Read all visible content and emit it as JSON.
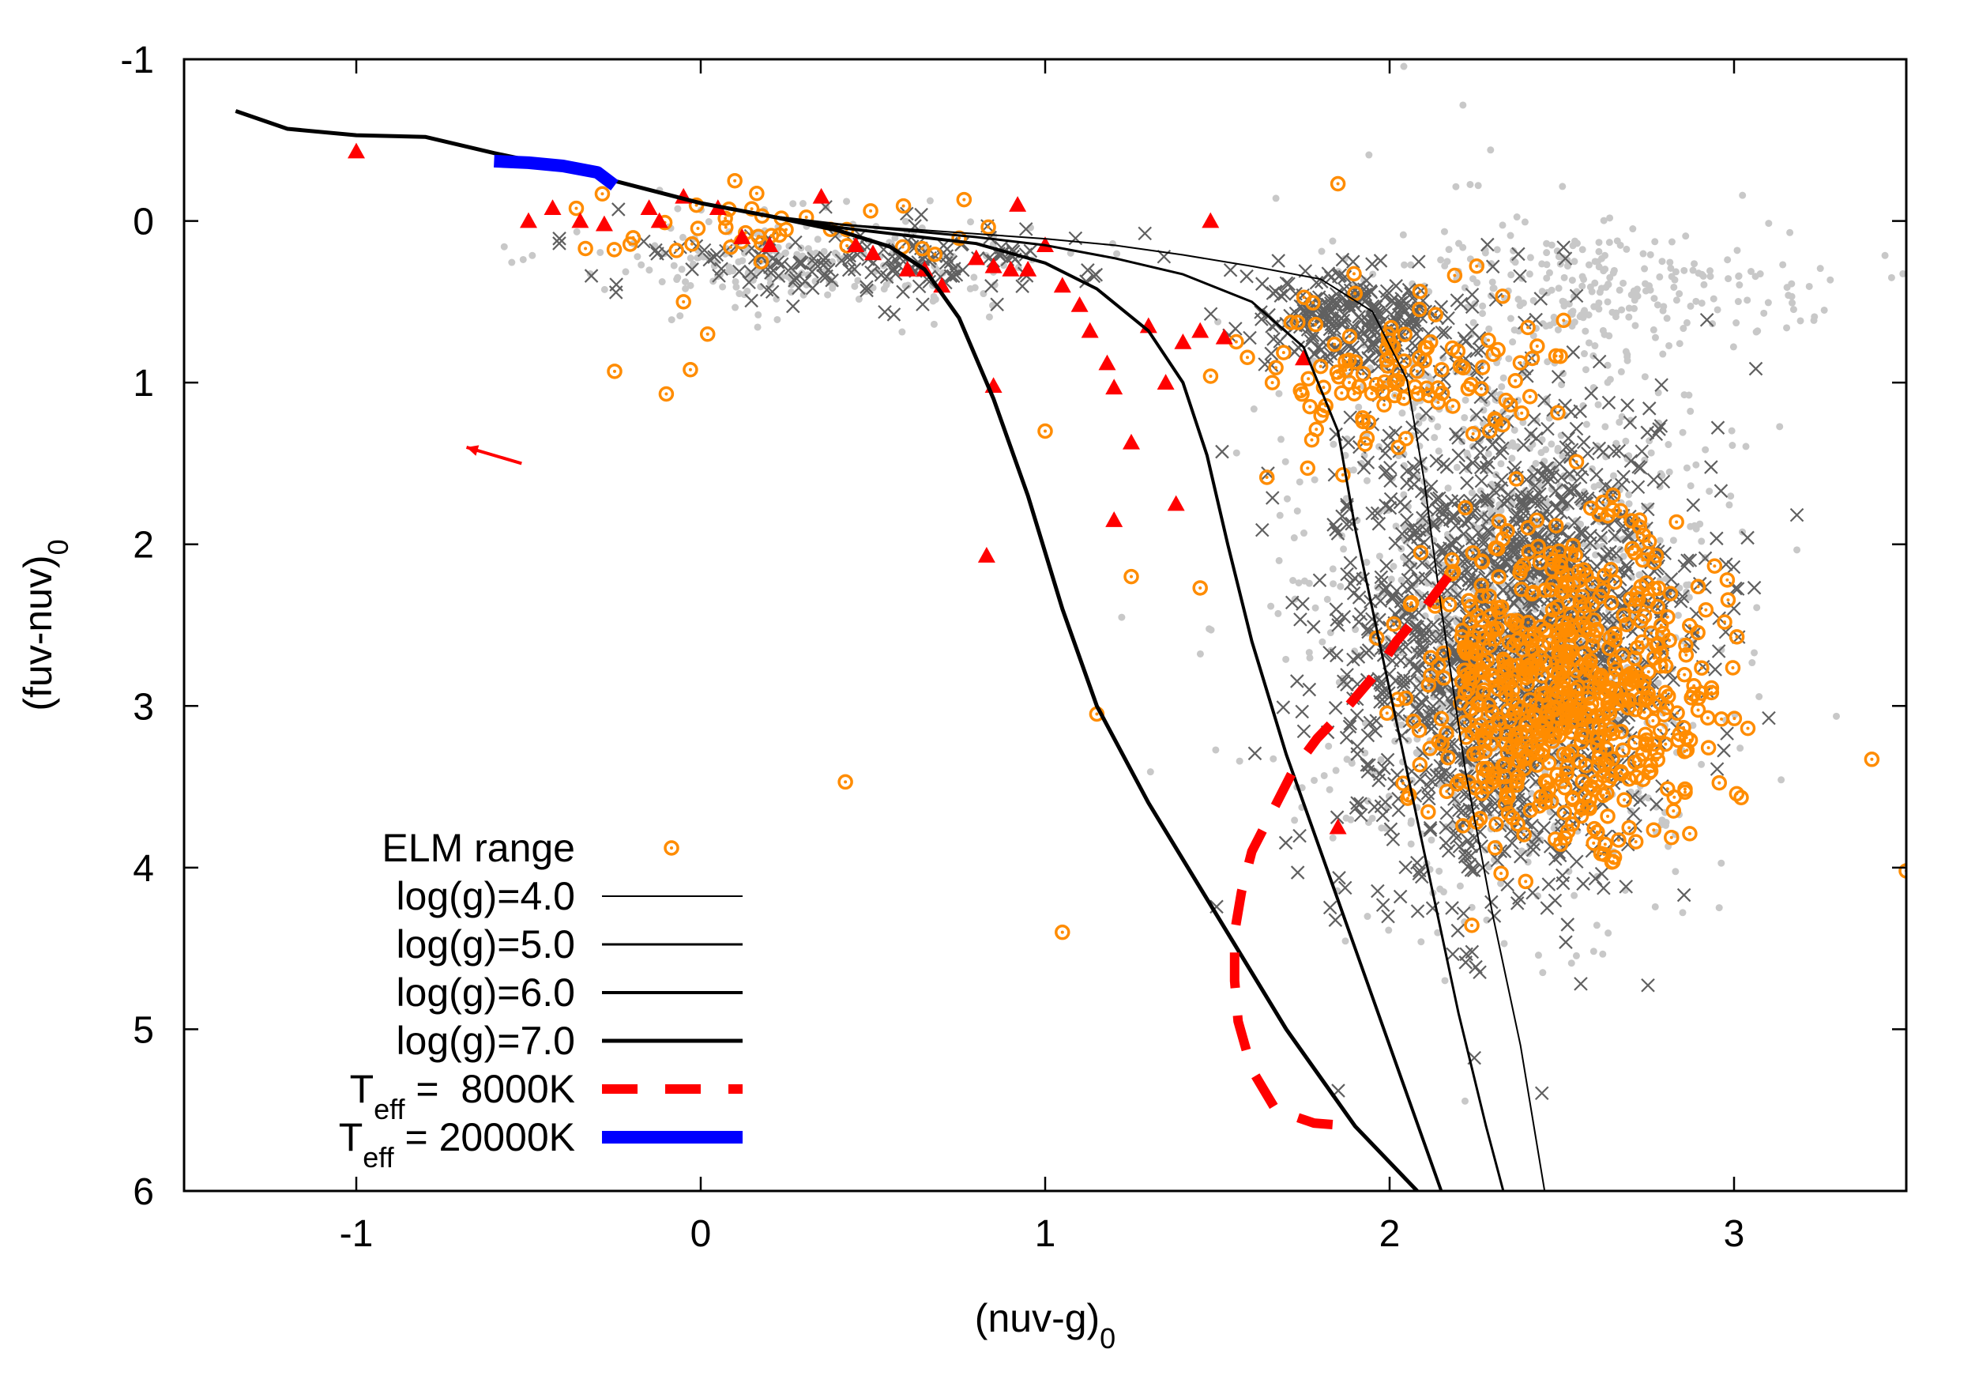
{
  "chart_data": {
    "type": "scatter",
    "xlabel": "(nuv-g)",
    "xlabel_sub": "0",
    "ylabel": "(fuv-nuv)",
    "ylabel_sub": "0",
    "xlim": [
      -1.5,
      3.5
    ],
    "ylim": [
      6,
      -1
    ],
    "y_inverted": true,
    "xticks": [
      -1,
      0,
      1,
      2,
      3
    ],
    "yticks": [
      -1,
      0,
      1,
      2,
      3,
      4,
      5,
      6
    ],
    "grid": false,
    "legend_position": "bottom-left",
    "series": [
      {
        "name": "log(g)=4.0",
        "kind": "line",
        "color": "#000000",
        "width": 2,
        "legend": "log(g)=4.0",
        "points": [
          [
            -1.35,
            -0.68
          ],
          [
            -1.2,
            -0.57
          ],
          [
            -1.0,
            -0.53
          ],
          [
            -0.8,
            -0.52
          ],
          [
            -0.6,
            -0.42
          ],
          [
            -0.4,
            -0.33
          ],
          [
            -0.2,
            -0.22
          ],
          [
            0.0,
            -0.11
          ],
          [
            0.2,
            -0.03
          ],
          [
            0.4,
            0.02
          ],
          [
            0.6,
            0.05
          ],
          [
            0.8,
            0.08
          ],
          [
            1.0,
            0.11
          ],
          [
            1.2,
            0.15
          ],
          [
            1.4,
            0.21
          ],
          [
            1.6,
            0.28
          ],
          [
            1.8,
            0.36
          ],
          [
            1.95,
            0.56
          ],
          [
            2.05,
            0.98
          ],
          [
            2.1,
            1.6
          ],
          [
            2.15,
            2.4
          ],
          [
            2.22,
            3.4
          ],
          [
            2.3,
            4.3
          ],
          [
            2.38,
            5.1
          ],
          [
            2.45,
            6.0
          ]
        ]
      },
      {
        "name": "log(g)=5.0",
        "kind": "line",
        "color": "#000000",
        "width": 3,
        "legend": "log(g)=5.0",
        "points": [
          [
            -1.35,
            -0.68
          ],
          [
            -1.2,
            -0.57
          ],
          [
            -1.0,
            -0.53
          ],
          [
            -0.8,
            -0.52
          ],
          [
            -0.6,
            -0.42
          ],
          [
            -0.4,
            -0.33
          ],
          [
            -0.2,
            -0.22
          ],
          [
            0.0,
            -0.11
          ],
          [
            0.2,
            -0.03
          ],
          [
            0.4,
            0.02
          ],
          [
            0.6,
            0.06
          ],
          [
            0.8,
            0.1
          ],
          [
            1.0,
            0.15
          ],
          [
            1.2,
            0.23
          ],
          [
            1.4,
            0.33
          ],
          [
            1.6,
            0.5
          ],
          [
            1.75,
            0.78
          ],
          [
            1.85,
            1.3
          ],
          [
            1.9,
            1.9
          ],
          [
            1.97,
            2.6
          ],
          [
            2.05,
            3.4
          ],
          [
            2.12,
            4.1
          ],
          [
            2.2,
            4.9
          ],
          [
            2.28,
            5.6
          ],
          [
            2.33,
            6.0
          ]
        ]
      },
      {
        "name": "log(g)=6.0",
        "kind": "line",
        "color": "#000000",
        "width": 4,
        "legend": "log(g)=6.0",
        "points": [
          [
            -1.35,
            -0.68
          ],
          [
            -1.2,
            -0.57
          ],
          [
            -1.0,
            -0.53
          ],
          [
            -0.8,
            -0.52
          ],
          [
            -0.6,
            -0.42
          ],
          [
            -0.4,
            -0.33
          ],
          [
            -0.2,
            -0.22
          ],
          [
            0.0,
            -0.11
          ],
          [
            0.2,
            -0.03
          ],
          [
            0.4,
            0.04
          ],
          [
            0.6,
            0.09
          ],
          [
            0.8,
            0.14
          ],
          [
            1.0,
            0.26
          ],
          [
            1.15,
            0.42
          ],
          [
            1.3,
            0.68
          ],
          [
            1.4,
            1.0
          ],
          [
            1.47,
            1.45
          ],
          [
            1.53,
            2.0
          ],
          [
            1.6,
            2.6
          ],
          [
            1.7,
            3.3
          ],
          [
            1.85,
            4.2
          ],
          [
            1.95,
            4.8
          ],
          [
            2.05,
            5.4
          ],
          [
            2.15,
            6.0
          ]
        ]
      },
      {
        "name": "log(g)=7.0",
        "kind": "line",
        "color": "#000000",
        "width": 5,
        "legend": "log(g)=7.0",
        "points": [
          [
            -1.35,
            -0.68
          ],
          [
            -1.2,
            -0.57
          ],
          [
            -1.0,
            -0.53
          ],
          [
            -0.8,
            -0.52
          ],
          [
            -0.6,
            -0.42
          ],
          [
            -0.4,
            -0.33
          ],
          [
            -0.2,
            -0.22
          ],
          [
            0.0,
            -0.11
          ],
          [
            0.2,
            -0.03
          ],
          [
            0.4,
            0.06
          ],
          [
            0.55,
            0.16
          ],
          [
            0.65,
            0.3
          ],
          [
            0.75,
            0.6
          ],
          [
            0.85,
            1.1
          ],
          [
            0.95,
            1.7
          ],
          [
            1.05,
            2.4
          ],
          [
            1.15,
            3.0
          ],
          [
            1.3,
            3.6
          ],
          [
            1.5,
            4.3
          ],
          [
            1.7,
            5.0
          ],
          [
            1.9,
            5.6
          ],
          [
            2.08,
            6.0
          ]
        ]
      },
      {
        "name": "Teff = 8000K",
        "kind": "dashed-line",
        "color": "#ff0000",
        "width": 12,
        "legend": "T",
        "legend_sub": "eff",
        "legend_suffix": " =  8000K",
        "points": [
          [
            2.17,
            2.2
          ],
          [
            2.1,
            2.4
          ],
          [
            2.02,
            2.6
          ],
          [
            1.96,
            2.8
          ],
          [
            1.88,
            3.0
          ],
          [
            1.79,
            3.2
          ],
          [
            1.72,
            3.4
          ],
          [
            1.66,
            3.65
          ],
          [
            1.6,
            3.9
          ],
          [
            1.57,
            4.15
          ],
          [
            1.55,
            4.4
          ],
          [
            1.55,
            4.7
          ],
          [
            1.56,
            4.95
          ],
          [
            1.6,
            5.25
          ],
          [
            1.67,
            5.5
          ],
          [
            1.78,
            5.58
          ],
          [
            1.9,
            5.6
          ]
        ]
      },
      {
        "name": "Teff = 20000K",
        "kind": "line",
        "color": "#0000ff",
        "width": 16,
        "legend": "T",
        "legend_sub": "eff",
        "legend_suffix": " = 20000K",
        "points": [
          [
            -0.6,
            -0.37
          ],
          [
            -0.5,
            -0.36
          ],
          [
            -0.4,
            -0.34
          ],
          [
            -0.3,
            -0.3
          ],
          [
            -0.25,
            -0.22
          ]
        ]
      }
    ],
    "scatter_groups": [
      {
        "name": "background-sample",
        "marker": "dot",
        "color": "#c8c8c8",
        "regions": [
          {
            "cx": 2.35,
            "cy": 2.3,
            "sx": 0.5,
            "sy": 1.6,
            "n": 1100
          },
          {
            "cx": 0.3,
            "cy": 0.25,
            "sx": 0.55,
            "sy": 0.25,
            "n": 220
          },
          {
            "cx": 2.6,
            "cy": 0.4,
            "sx": 0.5,
            "sy": 0.3,
            "n": 220
          }
        ]
      },
      {
        "name": "x-cross-sample",
        "marker": "x",
        "color": "#606060",
        "regions": [
          {
            "cx": 2.35,
            "cy": 2.6,
            "sx": 0.42,
            "sy": 1.3,
            "n": 1500
          },
          {
            "cx": 1.9,
            "cy": 0.6,
            "sx": 0.25,
            "sy": 0.25,
            "n": 260
          },
          {
            "cx": 0.5,
            "cy": 0.25,
            "sx": 0.55,
            "sy": 0.2,
            "n": 160
          }
        ]
      },
      {
        "name": "ELM range",
        "legend": "ELM range",
        "marker": "circle-dot",
        "color": "#ff8c00",
        "regions": [
          {
            "cx": 2.5,
            "cy": 2.9,
            "sx": 0.35,
            "sy": 0.8,
            "n": 650
          },
          {
            "cx": 2.0,
            "cy": 0.9,
            "sx": 0.4,
            "sy": 0.4,
            "n": 120
          },
          {
            "cx": 0.2,
            "cy": 0.05,
            "sx": 0.5,
            "sy": 0.15,
            "n": 40
          }
        ],
        "points": [
          [
            -0.05,
            0.5
          ],
          [
            0.02,
            0.7
          ],
          [
            -0.03,
            0.92
          ],
          [
            -0.1,
            1.07
          ],
          [
            -0.25,
            0.93
          ],
          [
            0.42,
            3.47
          ],
          [
            1.05,
            4.4
          ],
          [
            1.85,
            -0.23
          ],
          [
            1.45,
            2.27
          ],
          [
            1.15,
            3.05
          ],
          [
            1.25,
            2.2
          ],
          [
            3.4,
            3.33
          ],
          [
            3.5,
            4.02
          ],
          [
            1.0,
            1.3
          ]
        ]
      },
      {
        "name": "red-triangles",
        "marker": "triangle",
        "color": "#ff0000",
        "points": [
          [
            -1.0,
            -0.43
          ],
          [
            -0.43,
            -0.08
          ],
          [
            -0.5,
            0.0
          ],
          [
            -0.35,
            0.0
          ],
          [
            -0.28,
            0.02
          ],
          [
            -0.15,
            -0.08
          ],
          [
            -0.12,
            0.0
          ],
          [
            -0.05,
            -0.15
          ],
          [
            0.05,
            -0.08
          ],
          [
            0.12,
            0.1
          ],
          [
            0.2,
            0.15
          ],
          [
            0.35,
            -0.15
          ],
          [
            0.45,
            0.15
          ],
          [
            0.5,
            0.2
          ],
          [
            0.6,
            0.3
          ],
          [
            0.65,
            0.3
          ],
          [
            0.7,
            0.4
          ],
          [
            0.8,
            0.23
          ],
          [
            0.85,
            0.28
          ],
          [
            0.9,
            0.3
          ],
          [
            0.95,
            0.3
          ],
          [
            1.0,
            0.15
          ],
          [
            1.05,
            0.4
          ],
          [
            1.1,
            0.52
          ],
          [
            1.13,
            0.68
          ],
          [
            1.18,
            0.88
          ],
          [
            1.2,
            1.03
          ],
          [
            1.25,
            1.37
          ],
          [
            1.2,
            1.85
          ],
          [
            1.38,
            1.75
          ],
          [
            1.45,
            0.68
          ],
          [
            1.48,
            0.0
          ],
          [
            1.52,
            0.72
          ],
          [
            1.4,
            0.75
          ],
          [
            1.35,
            1.0
          ],
          [
            0.85,
            1.02
          ],
          [
            0.83,
            2.07
          ],
          [
            0.92,
            -0.1
          ],
          [
            1.75,
            0.85
          ],
          [
            1.85,
            3.75
          ],
          [
            1.3,
            0.65
          ]
        ]
      }
    ],
    "arrow": {
      "from": [
        -0.52,
        1.5
      ],
      "to": [
        -0.68,
        1.4
      ],
      "color": "#ff0000"
    }
  }
}
